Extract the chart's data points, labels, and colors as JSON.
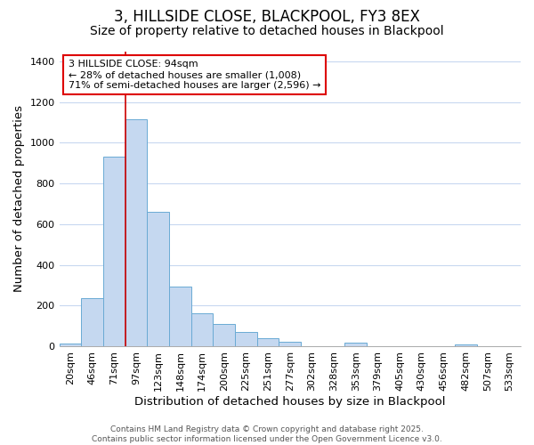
{
  "title": "3, HILLSIDE CLOSE, BLACKPOOL, FY3 8EX",
  "subtitle": "Size of property relative to detached houses in Blackpool",
  "xlabel": "Distribution of detached houses by size in Blackpool",
  "ylabel": "Number of detached properties",
  "categories": [
    "20sqm",
    "46sqm",
    "71sqm",
    "97sqm",
    "123sqm",
    "148sqm",
    "174sqm",
    "200sqm",
    "225sqm",
    "251sqm",
    "277sqm",
    "302sqm",
    "328sqm",
    "353sqm",
    "379sqm",
    "405sqm",
    "430sqm",
    "456sqm",
    "482sqm",
    "507sqm",
    "533sqm"
  ],
  "values": [
    12,
    235,
    930,
    1115,
    660,
    295,
    160,
    107,
    68,
    40,
    22,
    0,
    0,
    18,
    0,
    0,
    0,
    0,
    8,
    0,
    0
  ],
  "bar_color": "#c5d8f0",
  "bar_edge_color": "#6aaad4",
  "background_color": "#ffffff",
  "grid_color": "#c8d8f0",
  "annotation_text": "3 HILLSIDE CLOSE: 94sqm\n← 28% of detached houses are smaller (1,008)\n71% of semi-detached houses are larger (2,596) →",
  "annotation_box_color": "#dd0000",
  "vline_color": "#cc0000",
  "ylim": [
    0,
    1450
  ],
  "yticks": [
    0,
    200,
    400,
    600,
    800,
    1000,
    1200,
    1400
  ],
  "footer": "Contains HM Land Registry data © Crown copyright and database right 2025.\nContains public sector information licensed under the Open Government Licence v3.0.",
  "title_fontsize": 12,
  "subtitle_fontsize": 10,
  "axis_label_fontsize": 9.5,
  "tick_fontsize": 8,
  "annotation_fontsize": 8,
  "footer_fontsize": 6.5
}
